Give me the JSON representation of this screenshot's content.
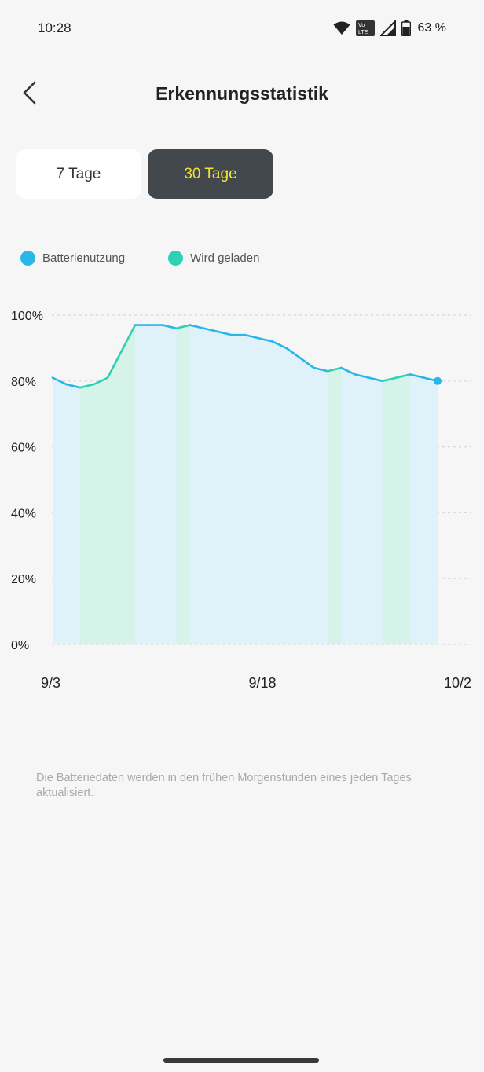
{
  "status_bar": {
    "time": "10:28",
    "battery_percent": "63 %",
    "icons": [
      "wifi-icon",
      "volte-icon",
      "signal-icon",
      "battery-icon"
    ]
  },
  "header": {
    "title": "Erkennungsstatistik",
    "back_icon": "chevron-left-icon"
  },
  "tabs": [
    {
      "label": "7 Tage",
      "selected": false
    },
    {
      "label": "30 Tage",
      "selected": true
    }
  ],
  "legend": [
    {
      "label": "Batterienutzung",
      "color": "#29b6e8"
    },
    {
      "label": "Wird geladen",
      "color": "#2fd1b4"
    }
  ],
  "chart_data": {
    "type": "area",
    "y_ticks": [
      "100%",
      "80%",
      "60%",
      "40%",
      "20%",
      "0%"
    ],
    "x_ticks": [
      "9/3",
      "9/18",
      "10/2"
    ],
    "ylim": [
      0,
      100
    ],
    "series": [
      {
        "name": "Batterienutzung",
        "values": [
          81,
          79,
          78,
          79,
          81,
          89,
          97,
          97,
          97,
          96,
          97,
          96,
          95,
          94,
          94,
          93,
          92,
          90,
          87,
          84,
          83,
          84,
          82,
          81,
          80,
          81,
          82,
          81,
          80
        ]
      }
    ],
    "charging_ranges": [
      [
        2,
        6
      ],
      [
        9,
        10
      ],
      [
        20,
        21
      ],
      [
        24,
        26
      ]
    ],
    "colors": {
      "usage_line": "#29b6e8",
      "charging_line": "#2fd1b4",
      "usage_fill": "#dff1f9",
      "charging_fill": "#d6f3ea",
      "grid": "#d8d8d8"
    }
  },
  "info": {
    "text": "Die Batteriedaten werden in den frühen Morgenstunden eines jeden Tages aktualisiert."
  }
}
